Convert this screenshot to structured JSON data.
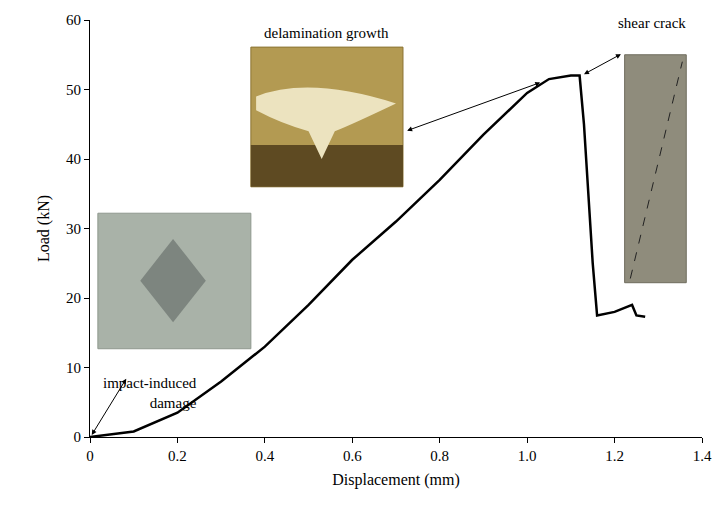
{
  "chart_data": {
    "type": "line",
    "x": [
      0,
      0.1,
      0.2,
      0.3,
      0.4,
      0.5,
      0.6,
      0.7,
      0.8,
      0.9,
      1.0,
      1.05,
      1.1,
      1.12,
      1.13,
      1.15,
      1.16,
      1.2,
      1.24,
      1.25,
      1.27
    ],
    "values": [
      0,
      0.8,
      3.5,
      8,
      13,
      19,
      25.5,
      31,
      37,
      43.5,
      49.5,
      51.5,
      52,
      52,
      45,
      25,
      17.5,
      18,
      19,
      17.5,
      17.3
    ],
    "color": "#000000",
    "xlabel": "Displacement (mm)",
    "ylabel": "Load (kN)",
    "xlim": [
      0,
      1.4
    ],
    "xticks": [
      0,
      0.2,
      0.4,
      0.6,
      0.8,
      {
        "value": 1.0,
        "label": "1.0"
      },
      1.2,
      1.4
    ],
    "ylim": [
      0,
      60
    ],
    "yticks": [
      0,
      10,
      20,
      30,
      40,
      50,
      60
    ],
    "grid": false,
    "annotations": [
      "impact-induced damage",
      "delamination growth",
      "shear crack"
    ]
  }
}
